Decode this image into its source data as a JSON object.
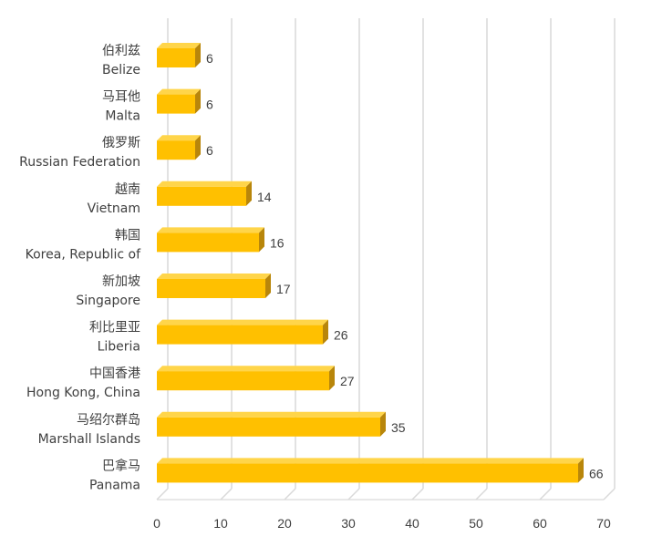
{
  "chart_data": {
    "type": "bar",
    "orientation": "horizontal",
    "style": "3d",
    "title": "",
    "xlabel": "",
    "ylabel": "",
    "xlim": [
      0,
      70
    ],
    "x_ticks": [
      0,
      10,
      20,
      30,
      40,
      50,
      60,
      70
    ],
    "grid": "vertical",
    "legend": "none",
    "bar_color": "#FFC000",
    "bar_top_color": "#FFD54A",
    "bar_side_color": "#B8860B",
    "grid_color": "#D9D9D9",
    "categories": [
      {
        "cn": "伯利兹",
        "en": "Belize"
      },
      {
        "cn": "马耳他",
        "en": "Malta"
      },
      {
        "cn": "俄罗斯",
        "en": "Russian Federation"
      },
      {
        "cn": "越南",
        "en": "Vietnam"
      },
      {
        "cn": "韩国",
        "en": "Korea, Republic of"
      },
      {
        "cn": "新加坡",
        "en": "Singapore"
      },
      {
        "cn": "利比里亚",
        "en": "Liberia"
      },
      {
        "cn": "中国香港",
        "en": "Hong Kong, China"
      },
      {
        "cn": "马绍尔群岛",
        "en": "Marshall Islands"
      },
      {
        "cn": "巴拿马",
        "en": "Panama"
      }
    ],
    "values": [
      6,
      6,
      6,
      14,
      16,
      17,
      26,
      27,
      35,
      66
    ]
  }
}
